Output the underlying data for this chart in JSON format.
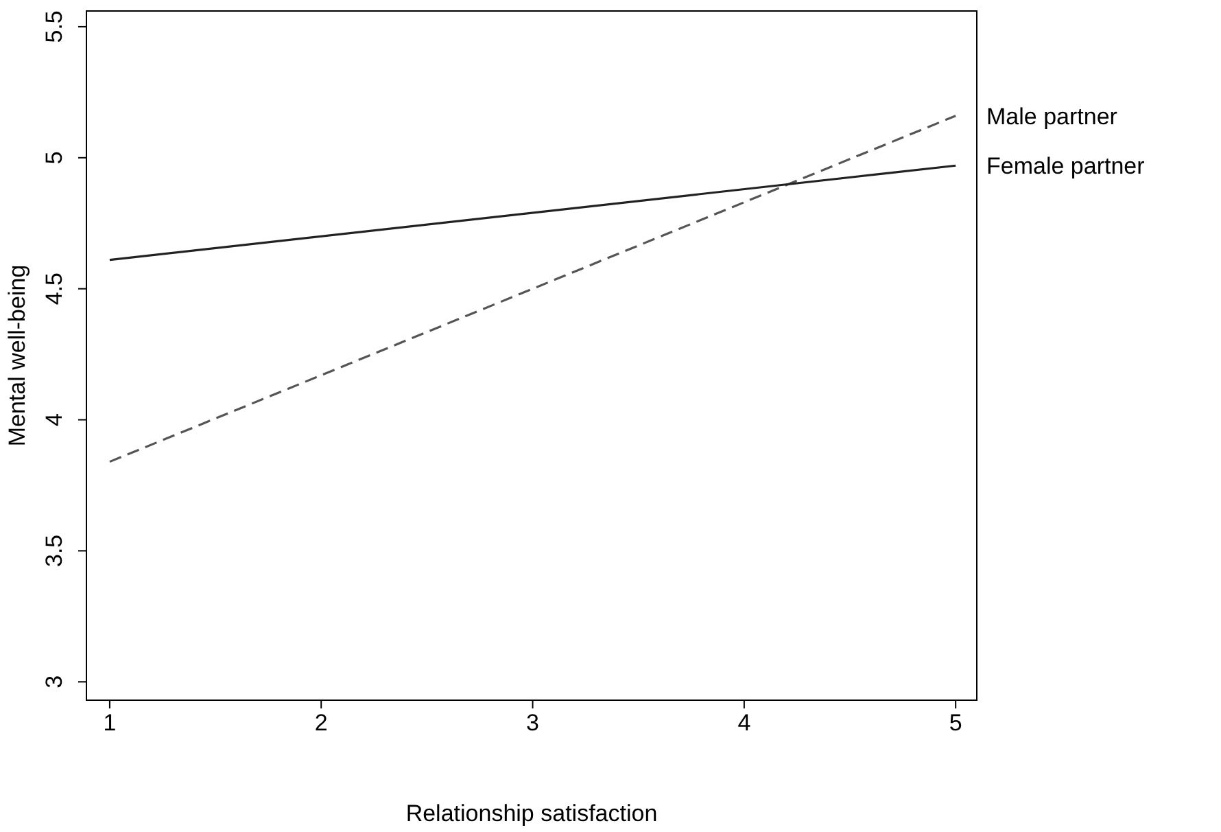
{
  "chart_data": {
    "type": "line",
    "xlabel": "Relationship satisfaction",
    "ylabel": "Mental well-being",
    "x": [
      1,
      5
    ],
    "xlim": [
      0.89,
      5.1
    ],
    "xticks": [
      1,
      2,
      3,
      4,
      5
    ],
    "ylim": [
      2.93,
      5.56
    ],
    "yticks": [
      3,
      3.5,
      4,
      4.5,
      5,
      5.5
    ],
    "grid": false,
    "legend": false,
    "marker": "none",
    "series": [
      {
        "name": "Male partner",
        "color": "#555555",
        "values": [
          3.84,
          5.16
        ],
        "line_style": "dashed"
      },
      {
        "name": "Female partner",
        "color": "#222222",
        "values": [
          4.61,
          4.97
        ],
        "line_style": "solid"
      }
    ]
  }
}
